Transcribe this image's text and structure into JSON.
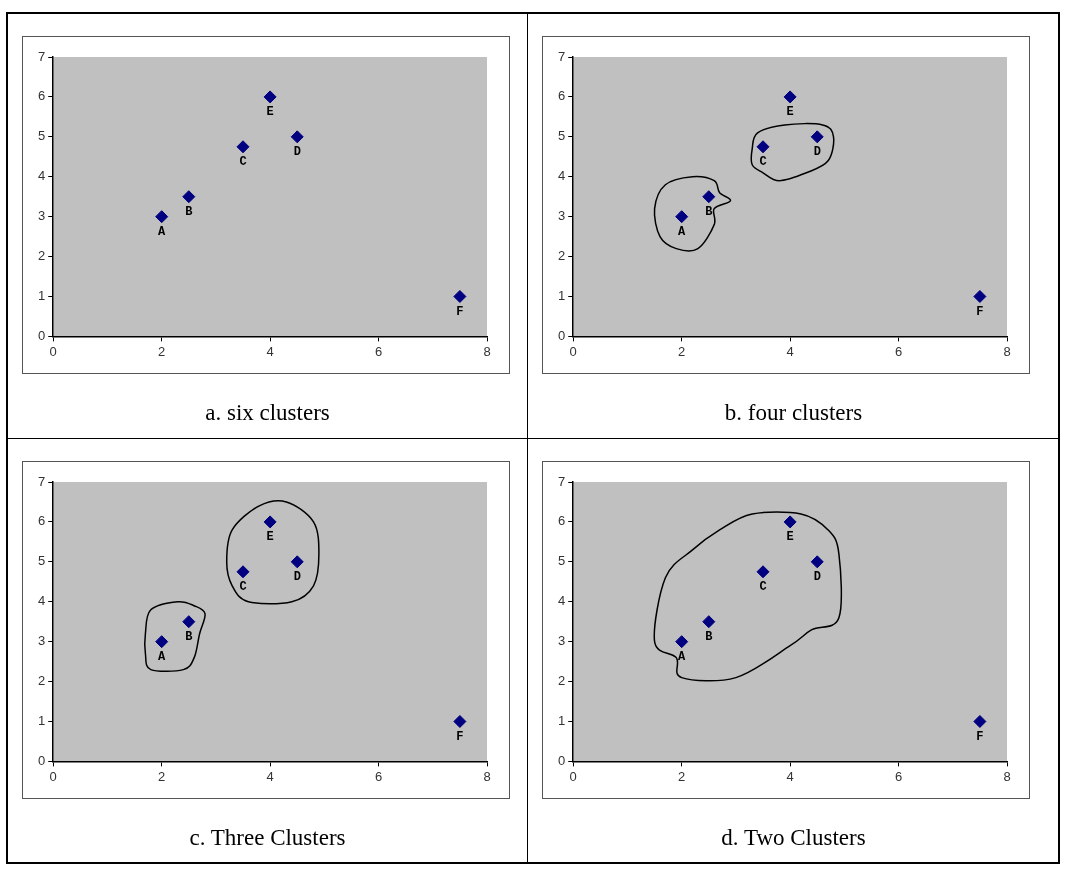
{
  "chart_data": [
    {
      "type": "scatter",
      "title": "a. six clusters",
      "x": [
        2,
        2.5,
        3.5,
        4.5,
        4,
        7.5
      ],
      "marker": "diamond",
      "series": [
        {
          "color": "#000080",
          "values": [
            3,
            3.5,
            4.75,
            5,
            6,
            1
          ]
        }
      ],
      "xlim": [
        0,
        8
      ],
      "xticks": [
        0,
        2,
        4,
        6,
        8
      ],
      "ylim": [
        0,
        7
      ],
      "yticks": [
        0,
        1,
        2,
        3,
        4,
        5,
        6,
        7
      ],
      "annotations": [
        {
          "text": "A",
          "x": 2,
          "y": 3
        },
        {
          "text": "B",
          "x": 2.5,
          "y": 3.5
        },
        {
          "text": "C",
          "x": 3.5,
          "y": 4.75
        },
        {
          "text": "D",
          "x": 4.5,
          "y": 5
        },
        {
          "text": "E",
          "x": 4,
          "y": 6
        },
        {
          "text": "F",
          "x": 7.5,
          "y": 1
        }
      ]
    },
    {
      "type": "scatter",
      "title": "b. four clusters",
      "x": [
        2,
        2.5,
        3.5,
        4.5,
        4,
        7.5
      ],
      "marker": "diamond",
      "series": [
        {
          "color": "#000080",
          "values": [
            3,
            3.5,
            4.75,
            5,
            6,
            1
          ]
        }
      ],
      "xlim": [
        0,
        8
      ],
      "xticks": [
        0,
        2,
        4,
        6,
        8
      ],
      "ylim": [
        0,
        7
      ],
      "yticks": [
        0,
        1,
        2,
        3,
        4,
        5,
        6,
        7
      ],
      "annotations": [
        {
          "text": "A",
          "x": 2,
          "y": 3
        },
        {
          "text": "B",
          "x": 2.5,
          "y": 3.5
        },
        {
          "text": "C",
          "x": 3.5,
          "y": 4.75
        },
        {
          "text": "D",
          "x": 4.5,
          "y": 5
        },
        {
          "text": "E",
          "x": 4,
          "y": 6
        },
        {
          "text": "F",
          "x": 7.5,
          "y": 1
        }
      ]
    },
    {
      "type": "scatter",
      "title": "c. Three Clusters",
      "x": [
        2,
        2.5,
        3.5,
        4.5,
        4,
        7.5
      ],
      "marker": "diamond",
      "series": [
        {
          "color": "#000080",
          "values": [
            3,
            3.5,
            4.75,
            5,
            6,
            1
          ]
        }
      ],
      "xlim": [
        0,
        8
      ],
      "xticks": [
        0,
        2,
        4,
        6,
        8
      ],
      "ylim": [
        0,
        7
      ],
      "yticks": [
        0,
        1,
        2,
        3,
        4,
        5,
        6,
        7
      ],
      "annotations": [
        {
          "text": "A",
          "x": 2,
          "y": 3
        },
        {
          "text": "B",
          "x": 2.5,
          "y": 3.5
        },
        {
          "text": "C",
          "x": 3.5,
          "y": 4.75
        },
        {
          "text": "D",
          "x": 4.5,
          "y": 5
        },
        {
          "text": "E",
          "x": 4,
          "y": 6
        },
        {
          "text": "F",
          "x": 7.5,
          "y": 1
        }
      ]
    },
    {
      "type": "scatter",
      "title": "d. Two Clusters",
      "x": [
        2,
        2.5,
        3.5,
        4.5,
        4,
        7.5
      ],
      "marker": "diamond",
      "series": [
        {
          "color": "#000080",
          "values": [
            3,
            3.5,
            4.75,
            5,
            6,
            1
          ]
        }
      ],
      "xlim": [
        0,
        8
      ],
      "xticks": [
        0,
        2,
        4,
        6,
        8
      ],
      "ylim": [
        0,
        7
      ],
      "yticks": [
        0,
        1,
        2,
        3,
        4,
        5,
        6,
        7
      ],
      "annotations": [
        {
          "text": "A",
          "x": 2,
          "y": 3
        },
        {
          "text": "B",
          "x": 2.5,
          "y": 3.5
        },
        {
          "text": "C",
          "x": 3.5,
          "y": 4.75
        },
        {
          "text": "D",
          "x": 4.5,
          "y": 5
        },
        {
          "text": "E",
          "x": 4,
          "y": 6
        },
        {
          "text": "F",
          "x": 7.5,
          "y": 1
        }
      ]
    }
  ]
}
